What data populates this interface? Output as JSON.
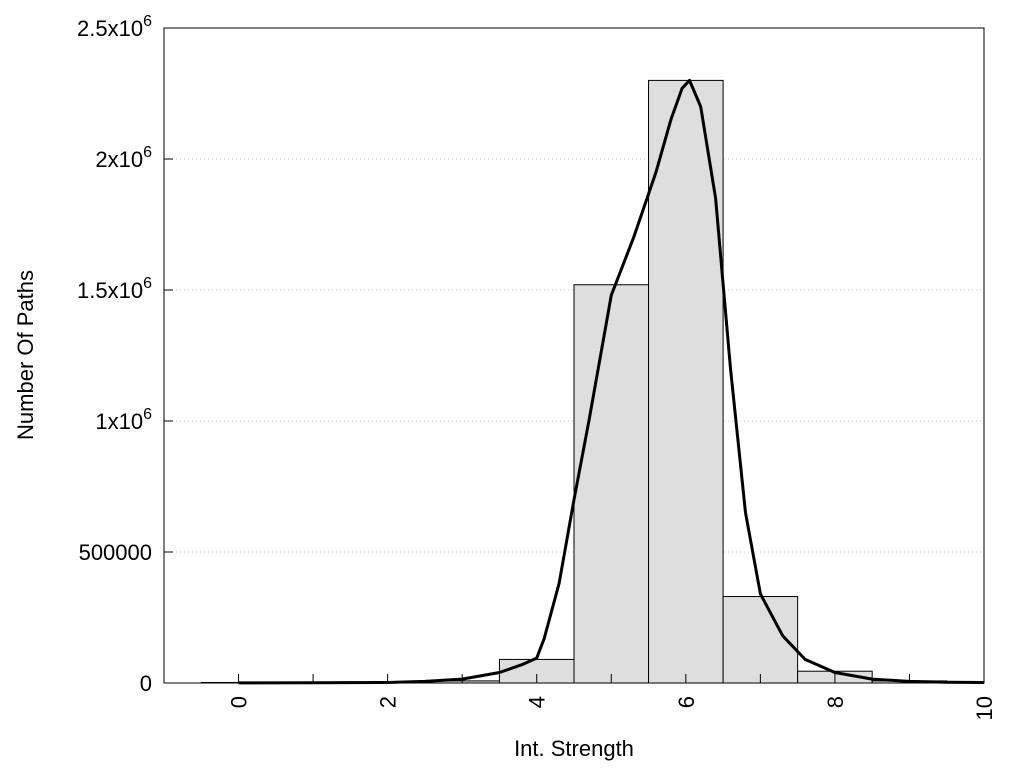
{
  "chart_data": {
    "type": "bar",
    "title": "",
    "xlabel": "Int. Strength",
    "ylabel": "Number Of Paths",
    "xlim": [
      -1,
      10
    ],
    "ylim": [
      0,
      2500000
    ],
    "grid": true,
    "x_ticks": [
      {
        "value": 0,
        "label": "0"
      },
      {
        "value": 2,
        "label": "2"
      },
      {
        "value": 4,
        "label": "4"
      },
      {
        "value": 6,
        "label": "6"
      },
      {
        "value": 8,
        "label": "8"
      },
      {
        "value": 10,
        "label": "10"
      }
    ],
    "y_ticks": [
      {
        "value": 0,
        "mantissa": "0",
        "exp": ""
      },
      {
        "value": 500000,
        "mantissa": "500000",
        "exp": ""
      },
      {
        "value": 1000000,
        "mantissa": "1x10",
        "exp": "6"
      },
      {
        "value": 1500000,
        "mantissa": "1.5x10",
        "exp": "6"
      },
      {
        "value": 2000000,
        "mantissa": "2x10",
        "exp": "6"
      },
      {
        "value": 2500000,
        "mantissa": "2.5x10",
        "exp": "6"
      }
    ],
    "bars": {
      "x": [
        0,
        1,
        2,
        3,
        4,
        5,
        6,
        7,
        8,
        9
      ],
      "values": [
        2000,
        2000,
        3000,
        8000,
        90000,
        1520000,
        2300000,
        330000,
        45000,
        8000
      ]
    },
    "curve": {
      "x": [
        0,
        1,
        2,
        2.5,
        3,
        3.5,
        3.8,
        4,
        4.1,
        4.3,
        4.5,
        4.7,
        5,
        5.3,
        5.6,
        5.8,
        5.95,
        6.05,
        6.2,
        6.4,
        6.6,
        6.8,
        7,
        7.3,
        7.6,
        8,
        8.5,
        9,
        9.5,
        10
      ],
      "values": [
        500,
        800,
        2000,
        6000,
        15000,
        40000,
        70000,
        95000,
        170000,
        380000,
        700000,
        1000000,
        1480000,
        1700000,
        1950000,
        2150000,
        2270000,
        2300000,
        2200000,
        1850000,
        1200000,
        650000,
        340000,
        180000,
        90000,
        40000,
        15000,
        6000,
        3000,
        2000
      ]
    }
  }
}
